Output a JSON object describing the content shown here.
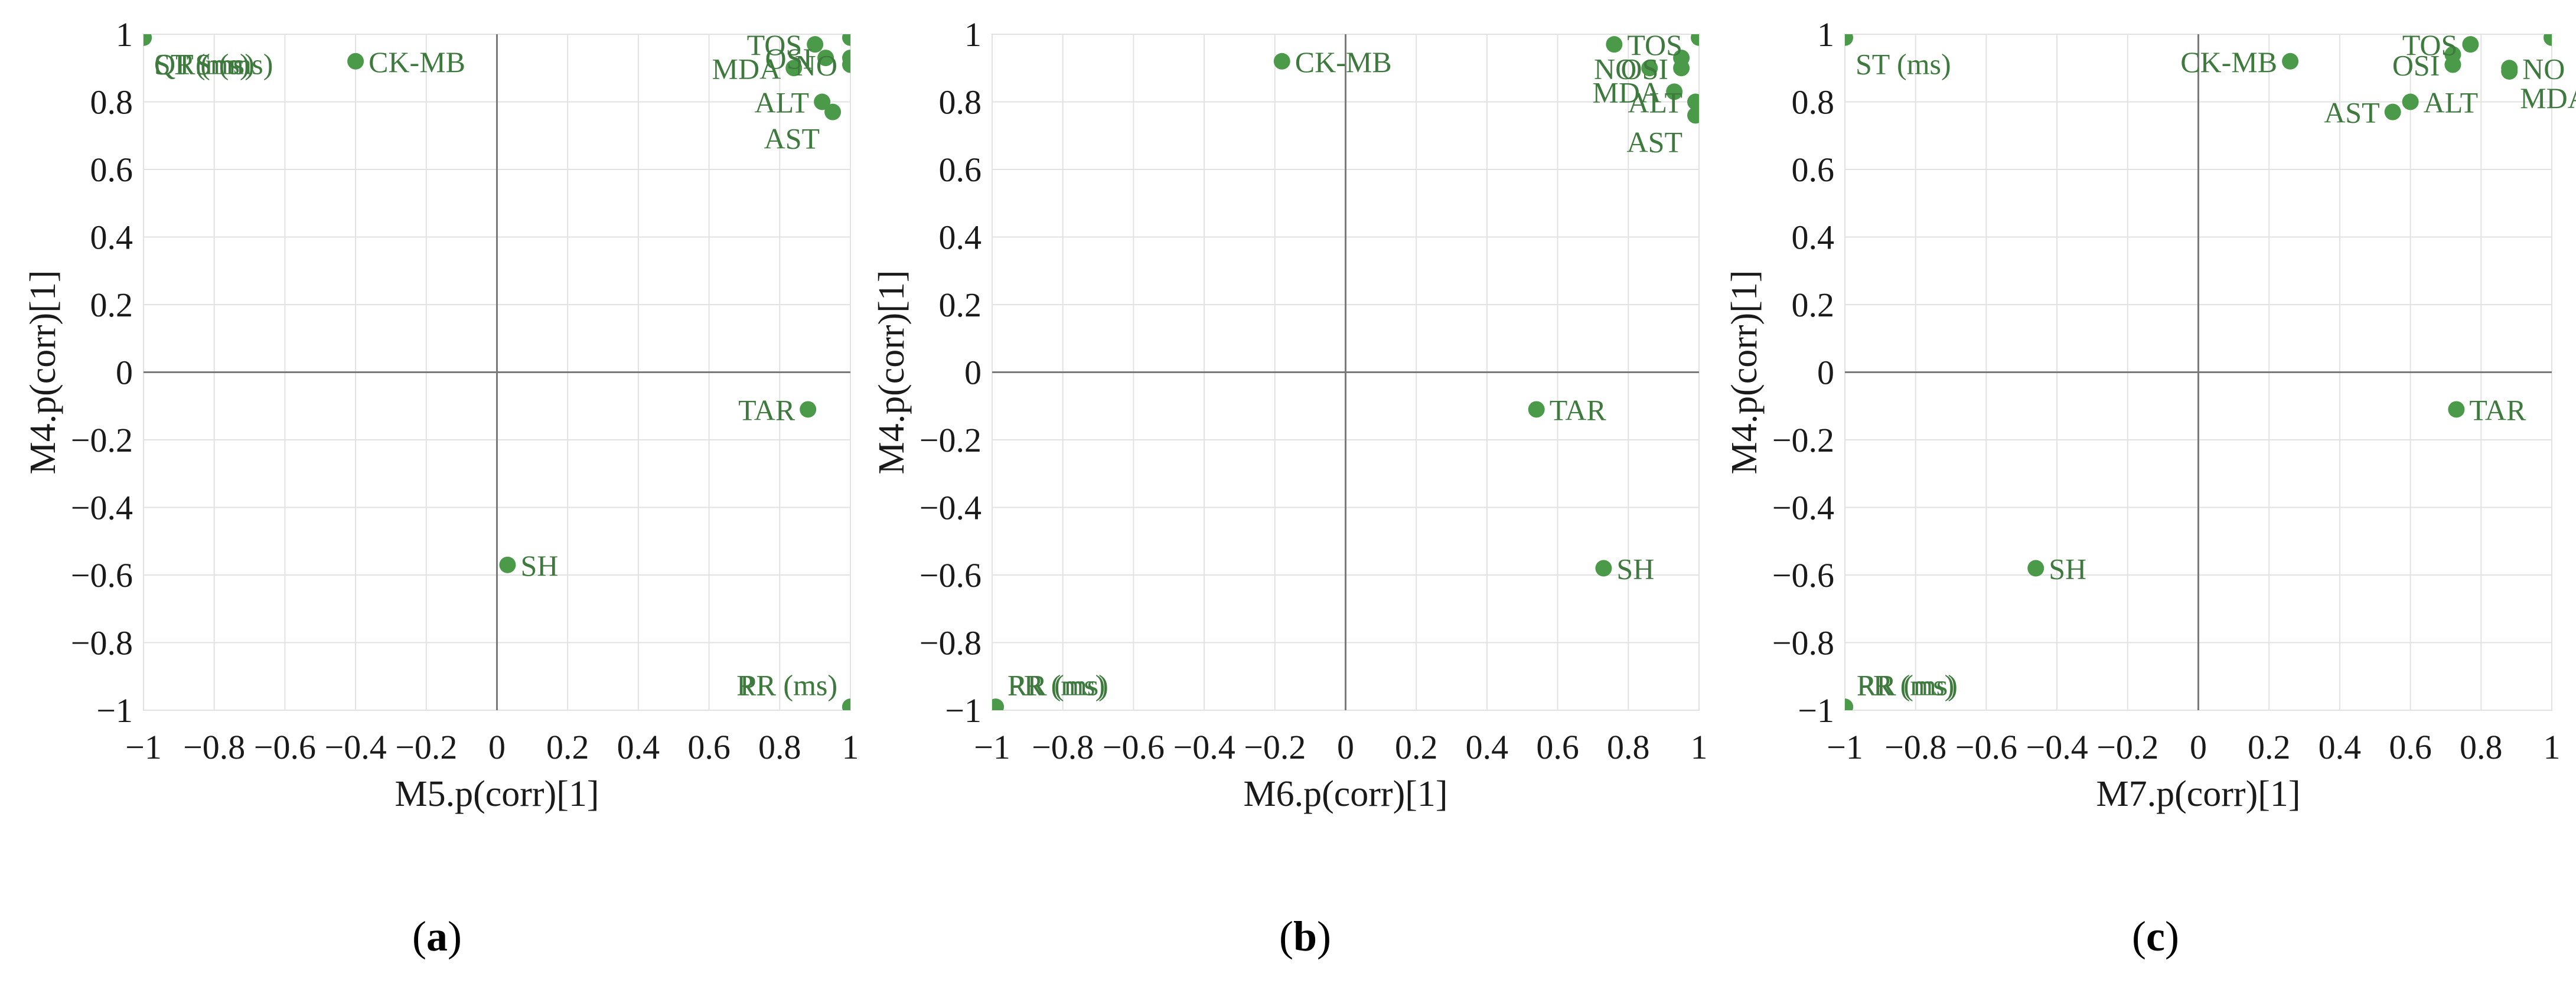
{
  "figure": {
    "captions": [
      "(a)",
      "(b)",
      "(c)"
    ],
    "panel_letters": [
      "a",
      "b",
      "c"
    ]
  },
  "colors": {
    "marker": "#4a9a4a",
    "label": "#3e7a3e",
    "axis": "#7a7a7a",
    "grid": "#e2e2e2",
    "frame": "#d4d4d4",
    "text": "#1a1a1a"
  },
  "chart_data": [
    {
      "type": "scatter",
      "title": "",
      "xlabel": "M5.p(corr)[1]",
      "ylabel": "M4.p(corr)[1]",
      "xlim": [
        -1,
        1
      ],
      "ylim": [
        -1,
        1
      ],
      "xticks": [
        "−1",
        "−0.8",
        "−0.6",
        "−0.4",
        "−0.2",
        "0",
        "0.2",
        "0.4",
        "0.6",
        "0.8",
        "1"
      ],
      "yticks": [
        "−1",
        "−0.8",
        "−0.6",
        "−0.4",
        "−0.2",
        "0",
        "0.2",
        "0.4",
        "0.6",
        "0.8",
        "1"
      ],
      "grid": true,
      "points": [
        {
          "label": "QT (ms)",
          "x": -1.0,
          "y": 0.99,
          "label_pos": "below-right"
        },
        {
          "label": "ST (ms)",
          "x": -1.0,
          "y": 0.99,
          "label_pos": "below-right"
        },
        {
          "label": "QRS (ms)",
          "x": -1.0,
          "y": 0.99,
          "label_pos": "below-right"
        },
        {
          "label": "CK-MB",
          "x": -0.4,
          "y": 0.92,
          "label_pos": "right"
        },
        {
          "label": "TOS",
          "x": 0.9,
          "y": 0.97,
          "label_pos": "left"
        },
        {
          "label": "OSI",
          "x": 0.93,
          "y": 0.93,
          "label_pos": "left"
        },
        {
          "label": "MDA",
          "x": 0.84,
          "y": 0.9,
          "label_pos": "left"
        },
        {
          "label": "NO",
          "x": 1.0,
          "y": 0.91,
          "label_pos": "left"
        },
        {
          "label": "",
          "x": 1.0,
          "y": 0.99,
          "label_pos": "none"
        },
        {
          "label": "",
          "x": 1.0,
          "y": 0.93,
          "label_pos": "none"
        },
        {
          "label": "ALT",
          "x": 0.92,
          "y": 0.8,
          "label_pos": "left"
        },
        {
          "label": "AST",
          "x": 0.95,
          "y": 0.77,
          "label_pos": "below-left"
        },
        {
          "label": "TAR",
          "x": 0.88,
          "y": -0.11,
          "label_pos": "left"
        },
        {
          "label": "SH",
          "x": 0.03,
          "y": -0.57,
          "label_pos": "right"
        },
        {
          "label": "PR (ms)",
          "x": 1.0,
          "y": -0.99,
          "label_pos": "above-left"
        },
        {
          "label": "RR (ms)",
          "x": 1.0,
          "y": -0.99,
          "label_pos": "above-left"
        }
      ]
    },
    {
      "type": "scatter",
      "title": "",
      "xlabel": "M6.p(corr)[1]",
      "ylabel": "M4.p(corr)[1]",
      "xlim": [
        -1,
        1
      ],
      "ylim": [
        -1,
        1
      ],
      "xticks": [
        "−1",
        "−0.8",
        "−0.6",
        "−0.4",
        "−0.2",
        "0",
        "0.2",
        "0.4",
        "0.6",
        "0.8",
        "1"
      ],
      "yticks": [
        "−1",
        "−0.8",
        "−0.6",
        "−0.4",
        "−0.2",
        "0",
        "0.2",
        "0.4",
        "0.6",
        "0.8",
        "1"
      ],
      "grid": true,
      "points": [
        {
          "label": "CK-MB",
          "x": -0.18,
          "y": 0.92,
          "label_pos": "right"
        },
        {
          "label": "TOS",
          "x": 0.76,
          "y": 0.97,
          "label_pos": "right"
        },
        {
          "label": "",
          "x": 1.0,
          "y": 0.99,
          "label_pos": "none"
        },
        {
          "label": "",
          "x": 0.95,
          "y": 0.93,
          "label_pos": "none"
        },
        {
          "label": "NO",
          "x": 0.86,
          "y": 0.9,
          "label_pos": "left"
        },
        {
          "label": "OSI",
          "x": 0.95,
          "y": 0.9,
          "label_pos": "left"
        },
        {
          "label": "MDA",
          "x": 0.93,
          "y": 0.83,
          "label_pos": "left"
        },
        {
          "label": "ALT",
          "x": 0.99,
          "y": 0.8,
          "label_pos": "left"
        },
        {
          "label": "AST",
          "x": 0.99,
          "y": 0.76,
          "label_pos": "below-left"
        },
        {
          "label": "TAR",
          "x": 0.54,
          "y": -0.11,
          "label_pos": "right"
        },
        {
          "label": "SH",
          "x": 0.73,
          "y": -0.58,
          "label_pos": "right"
        },
        {
          "label": "PR (ms)",
          "x": -0.99,
          "y": -0.99,
          "label_pos": "above-right"
        },
        {
          "label": "RR (ms)",
          "x": -0.99,
          "y": -0.99,
          "label_pos": "above-right"
        }
      ]
    },
    {
      "type": "scatter",
      "title": "",
      "xlabel": "M7.p(corr)[1]",
      "ylabel": "M4.p(corr)[1]",
      "xlim": [
        -1,
        1
      ],
      "ylim": [
        -1,
        1
      ],
      "xticks": [
        "−1",
        "−0.8",
        "−0.6",
        "−0.4",
        "−0.2",
        "0",
        "0.2",
        "0.4",
        "0.6",
        "0.8",
        "1"
      ],
      "yticks": [
        "−1",
        "−0.8",
        "−0.6",
        "−0.4",
        "−0.2",
        "0",
        "0.2",
        "0.4",
        "0.6",
        "0.8",
        "1"
      ],
      "grid": true,
      "points": [
        {
          "label": "ST (ms)",
          "x": -1.0,
          "y": 0.99,
          "label_pos": "below-right"
        },
        {
          "label": "CK-MB",
          "x": 0.26,
          "y": 0.92,
          "label_pos": "left"
        },
        {
          "label": "TOS",
          "x": 0.77,
          "y": 0.97,
          "label_pos": "left"
        },
        {
          "label": "",
          "x": 0.72,
          "y": 0.94,
          "label_pos": "none"
        },
        {
          "label": "OSI",
          "x": 0.72,
          "y": 0.91,
          "label_pos": "left"
        },
        {
          "label": "NO",
          "x": 0.88,
          "y": 0.9,
          "label_pos": "right"
        },
        {
          "label": "MDA",
          "x": 0.88,
          "y": 0.89,
          "label_pos": "below-right"
        },
        {
          "label": "",
          "x": 1.0,
          "y": 0.99,
          "label_pos": "none"
        },
        {
          "label": "ALT",
          "x": 0.6,
          "y": 0.8,
          "label_pos": "right"
        },
        {
          "label": "AST",
          "x": 0.55,
          "y": 0.77,
          "label_pos": "left"
        },
        {
          "label": "TAR",
          "x": 0.73,
          "y": -0.11,
          "label_pos": "right"
        },
        {
          "label": "SH",
          "x": -0.46,
          "y": -0.58,
          "label_pos": "right"
        },
        {
          "label": "PR (ms)",
          "x": -1.0,
          "y": -0.99,
          "label_pos": "above-right"
        },
        {
          "label": "RR (ms)",
          "x": -1.0,
          "y": -0.99,
          "label_pos": "above-right"
        }
      ]
    }
  ]
}
